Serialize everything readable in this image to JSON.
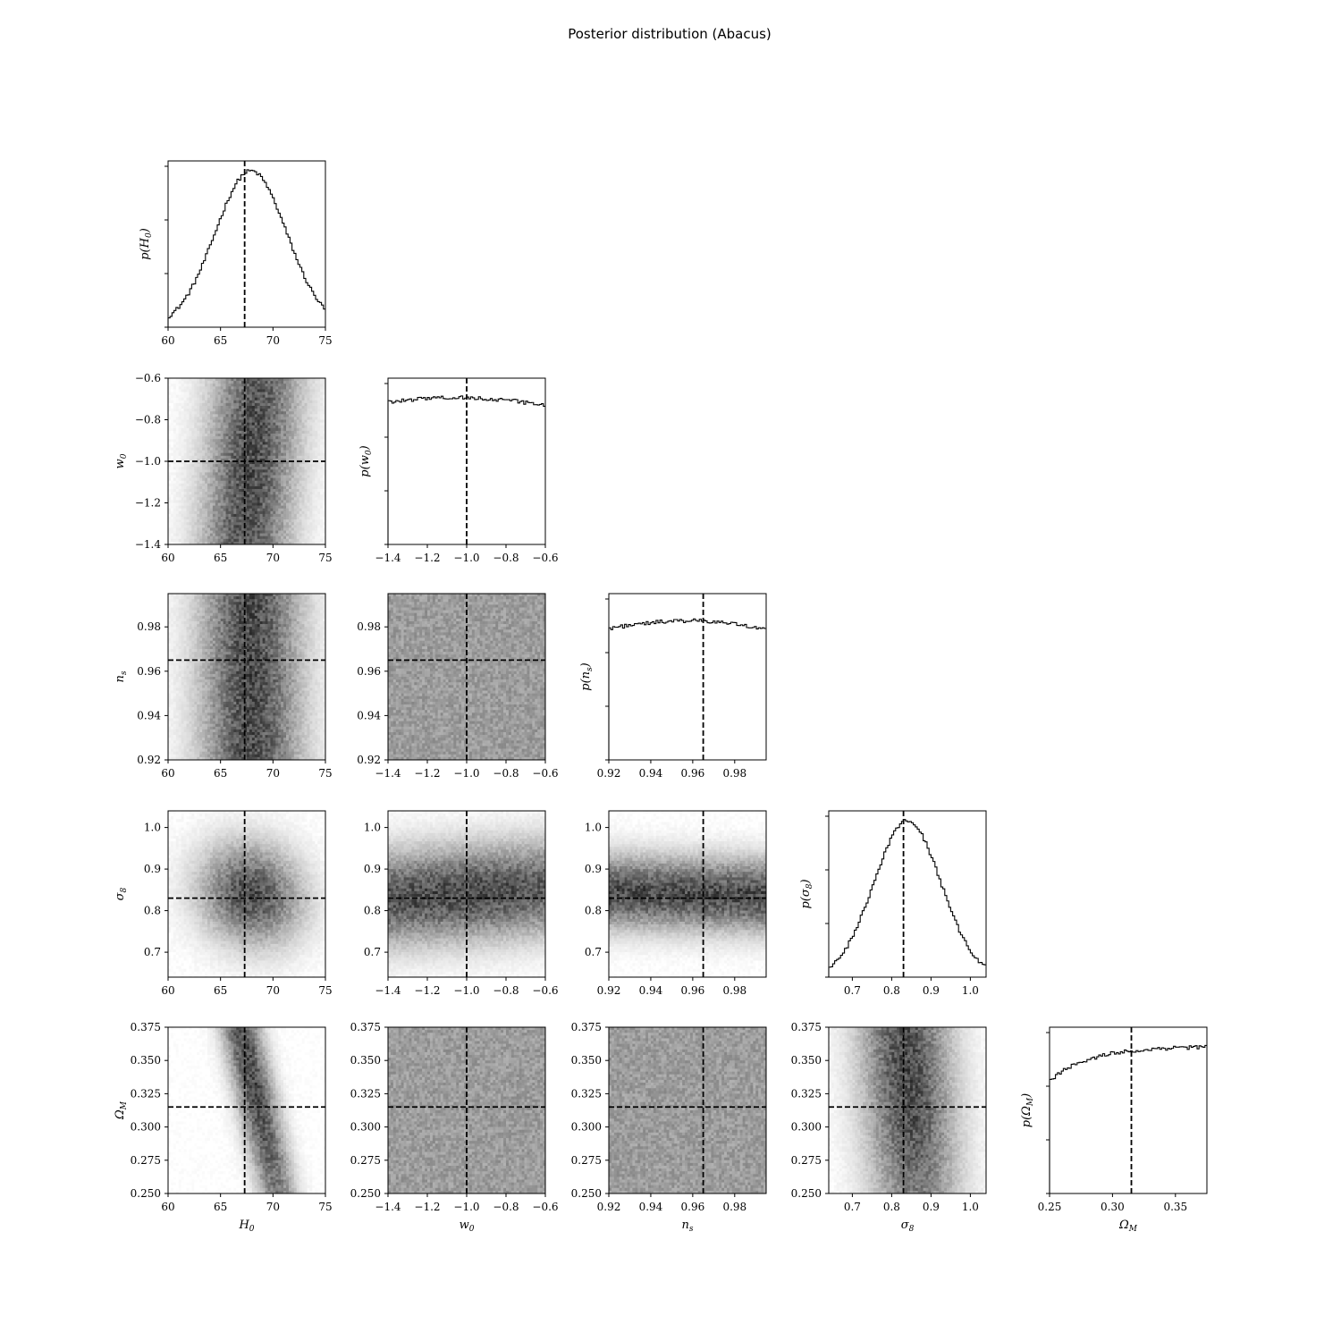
{
  "chart_data": {
    "type": "corner",
    "title": "Posterior distribution (Abacus)",
    "parameters": [
      {
        "key": "H0",
        "label": "H",
        "sub": "0",
        "range": [
          60,
          75
        ],
        "ticks": [
          "60",
          "65",
          "70",
          "75"
        ],
        "truth": 67.3,
        "marginal_label": "p(H0)",
        "marginal_shape": "gaussian",
        "mean": 67.9,
        "sd": 3.4
      },
      {
        "key": "w0",
        "label": "w",
        "sub": "0",
        "range": [
          -1.4,
          -0.6
        ],
        "ticks": [
          "−1.4",
          "−1.2",
          "−1.0",
          "−0.8",
          "−0.6"
        ],
        "truth": -1.0,
        "marginal_label": "p(w0)",
        "marginal_shape": "broad",
        "mean": -1.05,
        "sd": 0.45
      },
      {
        "key": "ns",
        "label": "n",
        "sub": "s",
        "range": [
          0.92,
          0.995
        ],
        "ticks": [
          "0.92",
          "0.94",
          "0.96",
          "0.98"
        ],
        "truth": 0.965,
        "marginal_label": "p(ns)",
        "marginal_shape": "flat",
        "mean": 0.96,
        "sd": 0.2
      },
      {
        "key": "sigma8",
        "label": "σ",
        "sub": "8",
        "range": [
          0.64,
          1.04
        ],
        "ticks": [
          "0.7",
          "0.8",
          "0.9",
          "1.0"
        ],
        "truth": 0.83,
        "marginal_label": "p(σ8)",
        "marginal_shape": "gaussian",
        "mean": 0.84,
        "sd": 0.085
      },
      {
        "key": "OmegaM",
        "label": "Ω",
        "sub": "M",
        "range": [
          0.25,
          0.375
        ],
        "ticks": [
          "0.25",
          "0.30",
          "0.35"
        ],
        "ticks_offdiag": [
          "0.250",
          "0.275",
          "0.300",
          "0.325",
          "0.350",
          "0.375"
        ],
        "truth": 0.315,
        "marginal_label": "p(ΩM)",
        "marginal_shape": "rising",
        "mean": 0.34,
        "sd": 0.05
      }
    ],
    "correlations": [
      {
        "row": "w0",
        "col": "H0",
        "rho": 0.45
      },
      {
        "row": "ns",
        "col": "H0",
        "rho": -0.1
      },
      {
        "row": "ns",
        "col": "w0",
        "rho": 0.0
      },
      {
        "row": "sigma8",
        "col": "H0",
        "rho": -0.1
      },
      {
        "row": "sigma8",
        "col": "w0",
        "rho": 0.35
      },
      {
        "row": "sigma8",
        "col": "ns",
        "rho": -0.7
      },
      {
        "row": "OmegaM",
        "col": "H0",
        "rho": -0.92
      },
      {
        "row": "OmegaM",
        "col": "w0",
        "rho": 0.0
      },
      {
        "row": "OmegaM",
        "col": "ns",
        "rho": 0.0
      },
      {
        "row": "OmegaM",
        "col": "sigma8",
        "rho": -0.3
      }
    ],
    "grid": false,
    "colormap": "Greys",
    "truth_line_style": "dashed",
    "truth_line_color": "#000000"
  }
}
